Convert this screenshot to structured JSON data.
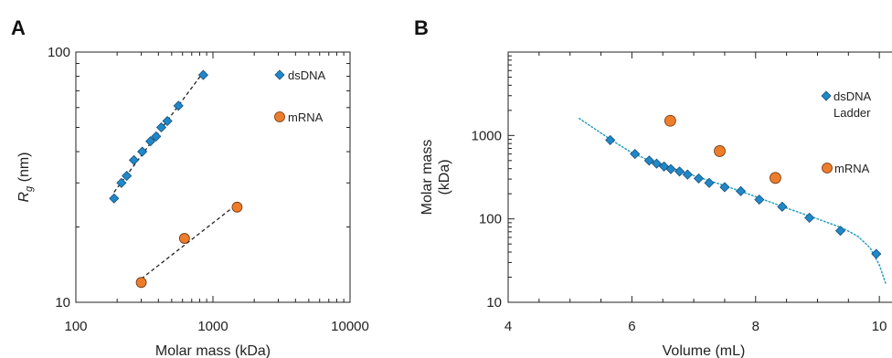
{
  "chart_data": [
    {
      "panel": "A",
      "type": "scatter",
      "xlabel": "Molar mass (kDa)",
      "ylabel": "Rg (nm)",
      "ylabel_main": "R",
      "ylabel_sub": "g",
      "ylabel_unit": " (nm)",
      "xscale": "log",
      "yscale": "log",
      "xlim": [
        100,
        10000
      ],
      "ylim": [
        10,
        100
      ],
      "xticks": [
        100,
        1000,
        10000
      ],
      "xtick_labels": [
        "100",
        "1000",
        "10000"
      ],
      "yticks": [
        10,
        100
      ],
      "ytick_labels": [
        "10",
        "100"
      ],
      "legend": "top-right",
      "grid": false,
      "series": [
        {
          "name": "dsDNA",
          "marker": "diamond",
          "color": "#1f88c9",
          "fit": "dashed",
          "points": [
            [
              190,
              26
            ],
            [
              215,
              30
            ],
            [
              235,
              32
            ],
            [
              265,
              37
            ],
            [
              305,
              40
            ],
            [
              350,
              44
            ],
            [
              385,
              46
            ],
            [
              420,
              50
            ],
            [
              465,
              53
            ],
            [
              560,
              61
            ],
            [
              850,
              81
            ]
          ]
        },
        {
          "name": "mRNA",
          "marker": "circle",
          "color": "#ee7d2b",
          "fit": "dashed",
          "points": [
            [
              300,
              12
            ],
            [
              620,
              18
            ],
            [
              1500,
              24
            ]
          ]
        }
      ]
    },
    {
      "panel": "B",
      "type": "scatter",
      "xlabel": "Volume (mL)",
      "ylabel": "Molar mass (kDa)",
      "ylabel_line1": "Molar mass",
      "ylabel_line2": "(kDa)",
      "xscale": "linear",
      "yscale": "log",
      "xlim": [
        4,
        10.5
      ],
      "ylim": [
        10,
        10000
      ],
      "xticks": [
        4,
        6,
        8,
        10
      ],
      "xtick_labels": [
        "4",
        "6",
        "8",
        "10"
      ],
      "yticks": [
        10,
        100,
        1000
      ],
      "ytick_labels": [
        "10",
        "100",
        "1000"
      ],
      "legend": "right",
      "grid": false,
      "series": [
        {
          "name": "dsDNA Ladder",
          "name_line1": "dsDNA",
          "name_line2": "Ladder",
          "marker": "diamond",
          "color": "#1f88c9",
          "fit": "dotted",
          "fit_color": "#2a9fbf",
          "points": [
            [
              5.65,
              880
            ],
            [
              6.05,
              600
            ],
            [
              6.28,
              500
            ],
            [
              6.4,
              460
            ],
            [
              6.52,
              425
            ],
            [
              6.63,
              395
            ],
            [
              6.77,
              370
            ],
            [
              6.9,
              340
            ],
            [
              7.08,
              305
            ],
            [
              7.25,
              270
            ],
            [
              7.5,
              240
            ],
            [
              7.76,
              215
            ],
            [
              8.06,
              170
            ],
            [
              8.43,
              140
            ],
            [
              8.87,
              103
            ],
            [
              9.37,
              72
            ],
            [
              9.95,
              38
            ]
          ],
          "fit_curve": [
            [
              5.15,
              1600
            ],
            [
              5.65,
              900
            ],
            [
              6.0,
              620
            ],
            [
              6.3,
              495
            ],
            [
              6.6,
              415
            ],
            [
              7.0,
              330
            ],
            [
              7.5,
              250
            ],
            [
              8.0,
              185
            ],
            [
              8.5,
              135
            ],
            [
              9.0,
              100
            ],
            [
              9.4,
              78
            ],
            [
              9.65,
              62
            ],
            [
              9.85,
              45
            ],
            [
              10.0,
              28
            ],
            [
              10.1,
              17
            ]
          ]
        },
        {
          "name": "mRNA",
          "marker": "circle",
          "color": "#ee7d2b",
          "points": [
            [
              6.62,
              1500
            ],
            [
              7.42,
              650
            ],
            [
              8.32,
              310
            ]
          ]
        }
      ]
    }
  ]
}
